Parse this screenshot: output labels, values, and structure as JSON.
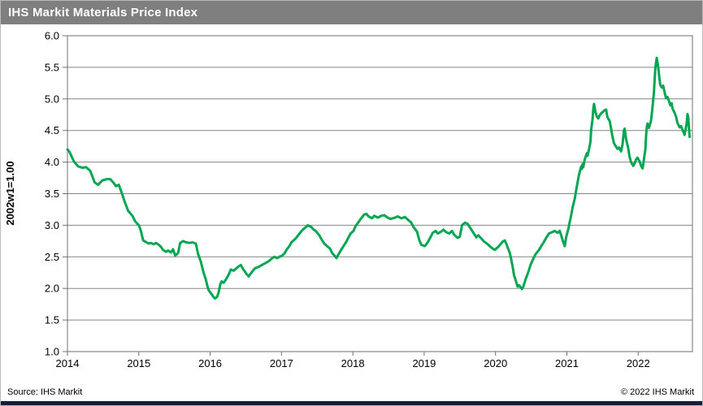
{
  "header": {
    "title": "IHS Markit Materials Price Index",
    "bg_color": "#7f7f7f",
    "text_color": "#ffffff"
  },
  "footer": {
    "source": "Source: IHS Markit",
    "copyright": "© 2022 IHS Markit",
    "bar_color": "#171b3c"
  },
  "chart_data": {
    "type": "line",
    "title": "IHS Markit Materials Price Index",
    "xlabel": "",
    "ylabel": "2002w1=1.00",
    "ylim": [
      1.0,
      6.0
    ],
    "xlim": [
      2014,
      2022.76
    ],
    "y_ticks": [
      1.0,
      1.5,
      2.0,
      2.5,
      3.0,
      3.5,
      4.0,
      4.5,
      5.0,
      5.5,
      6.0
    ],
    "x_ticks": [
      2014,
      2015,
      2016,
      2017,
      2018,
      2019,
      2020,
      2021,
      2022
    ],
    "grid": "horizontal",
    "legend": "none",
    "grid_color": "#858585",
    "axis_color": "#6f6f6f",
    "series": [
      {
        "name": "IHS Markit Materials Price Index",
        "color": "#00a651",
        "width": 3,
        "points": [
          [
            2014.0,
            4.2
          ],
          [
            2014.03,
            4.16
          ],
          [
            2014.09,
            4.01
          ],
          [
            2014.15,
            3.93
          ],
          [
            2014.21,
            3.91
          ],
          [
            2014.26,
            3.92
          ],
          [
            2014.32,
            3.86
          ],
          [
            2014.38,
            3.68
          ],
          [
            2014.43,
            3.64
          ],
          [
            2014.49,
            3.71
          ],
          [
            2014.55,
            3.73
          ],
          [
            2014.6,
            3.73
          ],
          [
            2014.64,
            3.68
          ],
          [
            2014.68,
            3.62
          ],
          [
            2014.72,
            3.64
          ],
          [
            2014.75,
            3.55
          ],
          [
            2014.8,
            3.38
          ],
          [
            2014.85,
            3.23
          ],
          [
            2014.91,
            3.15
          ],
          [
            2014.95,
            3.06
          ],
          [
            2015.0,
            3.0
          ],
          [
            2015.03,
            2.91
          ],
          [
            2015.06,
            2.76
          ],
          [
            2015.09,
            2.74
          ],
          [
            2015.14,
            2.71
          ],
          [
            2015.17,
            2.72
          ],
          [
            2015.21,
            2.7
          ],
          [
            2015.24,
            2.72
          ],
          [
            2015.28,
            2.69
          ],
          [
            2015.31,
            2.66
          ],
          [
            2015.34,
            2.61
          ],
          [
            2015.38,
            2.58
          ],
          [
            2015.41,
            2.6
          ],
          [
            2015.45,
            2.57
          ],
          [
            2015.48,
            2.62
          ],
          [
            2015.51,
            2.52
          ],
          [
            2015.55,
            2.56
          ],
          [
            2015.58,
            2.72
          ],
          [
            2015.62,
            2.75
          ],
          [
            2015.66,
            2.73
          ],
          [
            2015.71,
            2.72
          ],
          [
            2015.75,
            2.73
          ],
          [
            2015.8,
            2.71
          ],
          [
            2015.83,
            2.55
          ],
          [
            2015.87,
            2.42
          ],
          [
            2015.89,
            2.33
          ],
          [
            2015.91,
            2.24
          ],
          [
            2015.94,
            2.14
          ],
          [
            2015.96,
            2.04
          ],
          [
            2015.98,
            1.97
          ],
          [
            2016.02,
            1.91
          ],
          [
            2016.05,
            1.86
          ],
          [
            2016.07,
            1.84
          ],
          [
            2016.1,
            1.87
          ],
          [
            2016.12,
            1.94
          ],
          [
            2016.14,
            2.06
          ],
          [
            2016.16,
            2.11
          ],
          [
            2016.19,
            2.09
          ],
          [
            2016.22,
            2.14
          ],
          [
            2016.26,
            2.22
          ],
          [
            2016.29,
            2.3
          ],
          [
            2016.33,
            2.28
          ],
          [
            2016.37,
            2.32
          ],
          [
            2016.4,
            2.35
          ],
          [
            2016.43,
            2.37
          ],
          [
            2016.46,
            2.31
          ],
          [
            2016.51,
            2.23
          ],
          [
            2016.54,
            2.19
          ],
          [
            2016.6,
            2.28
          ],
          [
            2016.63,
            2.32
          ],
          [
            2016.68,
            2.34
          ],
          [
            2016.71,
            2.36
          ],
          [
            2016.74,
            2.38
          ],
          [
            2016.79,
            2.41
          ],
          [
            2016.82,
            2.43
          ],
          [
            2016.86,
            2.47
          ],
          [
            2016.9,
            2.5
          ],
          [
            2016.94,
            2.48
          ],
          [
            2016.97,
            2.5
          ],
          [
            2017.01,
            2.52
          ],
          [
            2017.04,
            2.55
          ],
          [
            2017.07,
            2.61
          ],
          [
            2017.11,
            2.67
          ],
          [
            2017.14,
            2.73
          ],
          [
            2017.19,
            2.78
          ],
          [
            2017.22,
            2.82
          ],
          [
            2017.26,
            2.88
          ],
          [
            2017.3,
            2.93
          ],
          [
            2017.34,
            2.97
          ],
          [
            2017.37,
            3.0
          ],
          [
            2017.42,
            2.97
          ],
          [
            2017.45,
            2.93
          ],
          [
            2017.48,
            2.91
          ],
          [
            2017.53,
            2.84
          ],
          [
            2017.56,
            2.78
          ],
          [
            2017.6,
            2.71
          ],
          [
            2017.64,
            2.67
          ],
          [
            2017.68,
            2.63
          ],
          [
            2017.71,
            2.56
          ],
          [
            2017.75,
            2.51
          ],
          [
            2017.77,
            2.48
          ],
          [
            2017.79,
            2.52
          ],
          [
            2017.83,
            2.6
          ],
          [
            2017.87,
            2.67
          ],
          [
            2017.91,
            2.74
          ],
          [
            2017.94,
            2.81
          ],
          [
            2017.97,
            2.87
          ],
          [
            2018.01,
            2.91
          ],
          [
            2018.04,
            2.99
          ],
          [
            2018.08,
            3.05
          ],
          [
            2018.11,
            3.1
          ],
          [
            2018.16,
            3.17
          ],
          [
            2018.19,
            3.18
          ],
          [
            2018.22,
            3.14
          ],
          [
            2018.27,
            3.11
          ],
          [
            2018.3,
            3.15
          ],
          [
            2018.35,
            3.12
          ],
          [
            2018.4,
            3.15
          ],
          [
            2018.44,
            3.16
          ],
          [
            2018.49,
            3.12
          ],
          [
            2018.53,
            3.1
          ],
          [
            2018.59,
            3.12
          ],
          [
            2018.63,
            3.14
          ],
          [
            2018.68,
            3.11
          ],
          [
            2018.73,
            3.13
          ],
          [
            2018.77,
            3.09
          ],
          [
            2018.82,
            3.04
          ],
          [
            2018.85,
            2.97
          ],
          [
            2018.9,
            2.9
          ],
          [
            2018.93,
            2.77
          ],
          [
            2018.96,
            2.69
          ],
          [
            2019.01,
            2.67
          ],
          [
            2019.05,
            2.73
          ],
          [
            2019.08,
            2.79
          ],
          [
            2019.12,
            2.88
          ],
          [
            2019.16,
            2.91
          ],
          [
            2019.19,
            2.87
          ],
          [
            2019.24,
            2.9
          ],
          [
            2019.27,
            2.93
          ],
          [
            2019.31,
            2.89
          ],
          [
            2019.35,
            2.87
          ],
          [
            2019.39,
            2.91
          ],
          [
            2019.42,
            2.85
          ],
          [
            2019.47,
            2.8
          ],
          [
            2019.5,
            2.82
          ],
          [
            2019.53,
            3.0
          ],
          [
            2019.57,
            3.04
          ],
          [
            2019.61,
            3.02
          ],
          [
            2019.65,
            2.95
          ],
          [
            2019.69,
            2.88
          ],
          [
            2019.73,
            2.81
          ],
          [
            2019.76,
            2.84
          ],
          [
            2019.81,
            2.78
          ],
          [
            2019.84,
            2.74
          ],
          [
            2019.88,
            2.71
          ],
          [
            2019.92,
            2.67
          ],
          [
            2019.96,
            2.63
          ],
          [
            2019.99,
            2.61
          ],
          [
            2020.04,
            2.66
          ],
          [
            2020.07,
            2.7
          ],
          [
            2020.1,
            2.74
          ],
          [
            2020.13,
            2.76
          ],
          [
            2020.15,
            2.71
          ],
          [
            2020.17,
            2.65
          ],
          [
            2020.2,
            2.56
          ],
          [
            2020.22,
            2.46
          ],
          [
            2020.24,
            2.34
          ],
          [
            2020.26,
            2.21
          ],
          [
            2020.29,
            2.1
          ],
          [
            2020.31,
            2.03
          ],
          [
            2020.33,
            2.05
          ],
          [
            2020.37,
            1.99
          ],
          [
            2020.39,
            2.03
          ],
          [
            2020.42,
            2.14
          ],
          [
            2020.46,
            2.26
          ],
          [
            2020.49,
            2.37
          ],
          [
            2020.53,
            2.47
          ],
          [
            2020.56,
            2.54
          ],
          [
            2020.61,
            2.61
          ],
          [
            2020.64,
            2.67
          ],
          [
            2020.67,
            2.72
          ],
          [
            2020.72,
            2.82
          ],
          [
            2020.75,
            2.87
          ],
          [
            2020.79,
            2.89
          ],
          [
            2020.83,
            2.91
          ],
          [
            2020.87,
            2.88
          ],
          [
            2020.9,
            2.91
          ],
          [
            2020.92,
            2.84
          ],
          [
            2020.95,
            2.73
          ],
          [
            2020.97,
            2.67
          ],
          [
            2020.99,
            2.81
          ],
          [
            2021.02,
            2.94
          ],
          [
            2021.04,
            3.05
          ],
          [
            2021.06,
            3.16
          ],
          [
            2021.08,
            3.28
          ],
          [
            2021.11,
            3.42
          ],
          [
            2021.13,
            3.55
          ],
          [
            2021.15,
            3.68
          ],
          [
            2021.17,
            3.8
          ],
          [
            2021.2,
            3.93
          ],
          [
            2021.21,
            3.89
          ],
          [
            2021.22,
            3.97
          ],
          [
            2021.23,
            3.92
          ],
          [
            2021.25,
            4.04
          ],
          [
            2021.28,
            4.14
          ],
          [
            2021.29,
            4.1
          ],
          [
            2021.31,
            4.2
          ],
          [
            2021.33,
            4.32
          ],
          [
            2021.34,
            4.5
          ],
          [
            2021.36,
            4.68
          ],
          [
            2021.37,
            4.84
          ],
          [
            2021.38,
            4.92
          ],
          [
            2021.4,
            4.8
          ],
          [
            2021.42,
            4.72
          ],
          [
            2021.44,
            4.69
          ],
          [
            2021.46,
            4.74
          ],
          [
            2021.48,
            4.77
          ],
          [
            2021.51,
            4.8
          ],
          [
            2021.53,
            4.82
          ],
          [
            2021.55,
            4.83
          ],
          [
            2021.56,
            4.76
          ],
          [
            2021.57,
            4.71
          ],
          [
            2021.6,
            4.65
          ],
          [
            2021.62,
            4.53
          ],
          [
            2021.64,
            4.4
          ],
          [
            2021.66,
            4.3
          ],
          [
            2021.69,
            4.24
          ],
          [
            2021.71,
            4.21
          ],
          [
            2021.73,
            4.23
          ],
          [
            2021.76,
            4.17
          ],
          [
            2021.78,
            4.28
          ],
          [
            2021.8,
            4.5
          ],
          [
            2021.81,
            4.53
          ],
          [
            2021.83,
            4.36
          ],
          [
            2021.86,
            4.22
          ],
          [
            2021.88,
            4.08
          ],
          [
            2021.9,
            4.0
          ],
          [
            2021.93,
            3.94
          ],
          [
            2021.95,
            3.98
          ],
          [
            2021.97,
            4.04
          ],
          [
            2021.99,
            4.07
          ],
          [
            2022.02,
            4.01
          ],
          [
            2022.04,
            3.94
          ],
          [
            2022.06,
            3.9
          ],
          [
            2022.07,
            3.96
          ],
          [
            2022.1,
            4.2
          ],
          [
            2022.11,
            4.4
          ],
          [
            2022.12,
            4.55
          ],
          [
            2022.13,
            4.61
          ],
          [
            2022.15,
            4.54
          ],
          [
            2022.18,
            4.66
          ],
          [
            2022.2,
            4.86
          ],
          [
            2022.22,
            5.1
          ],
          [
            2022.23,
            5.3
          ],
          [
            2022.24,
            5.5
          ],
          [
            2022.26,
            5.65
          ],
          [
            2022.28,
            5.5
          ],
          [
            2022.3,
            5.3
          ],
          [
            2022.31,
            5.22
          ],
          [
            2022.33,
            5.18
          ],
          [
            2022.35,
            5.21
          ],
          [
            2022.37,
            5.1
          ],
          [
            2022.39,
            5.01
          ],
          [
            2022.41,
            5.03
          ],
          [
            2022.43,
            4.97
          ],
          [
            2022.45,
            4.9
          ],
          [
            2022.47,
            4.93
          ],
          [
            2022.48,
            4.85
          ],
          [
            2022.51,
            4.78
          ],
          [
            2022.53,
            4.72
          ],
          [
            2022.55,
            4.62
          ],
          [
            2022.58,
            4.55
          ],
          [
            2022.6,
            4.57
          ],
          [
            2022.62,
            4.51
          ],
          [
            2022.64,
            4.46
          ],
          [
            2022.65,
            4.43
          ],
          [
            2022.68,
            4.62
          ],
          [
            2022.69,
            4.76
          ],
          [
            2022.7,
            4.72
          ],
          [
            2022.71,
            4.58
          ],
          [
            2022.72,
            4.4
          ]
        ]
      }
    ]
  }
}
